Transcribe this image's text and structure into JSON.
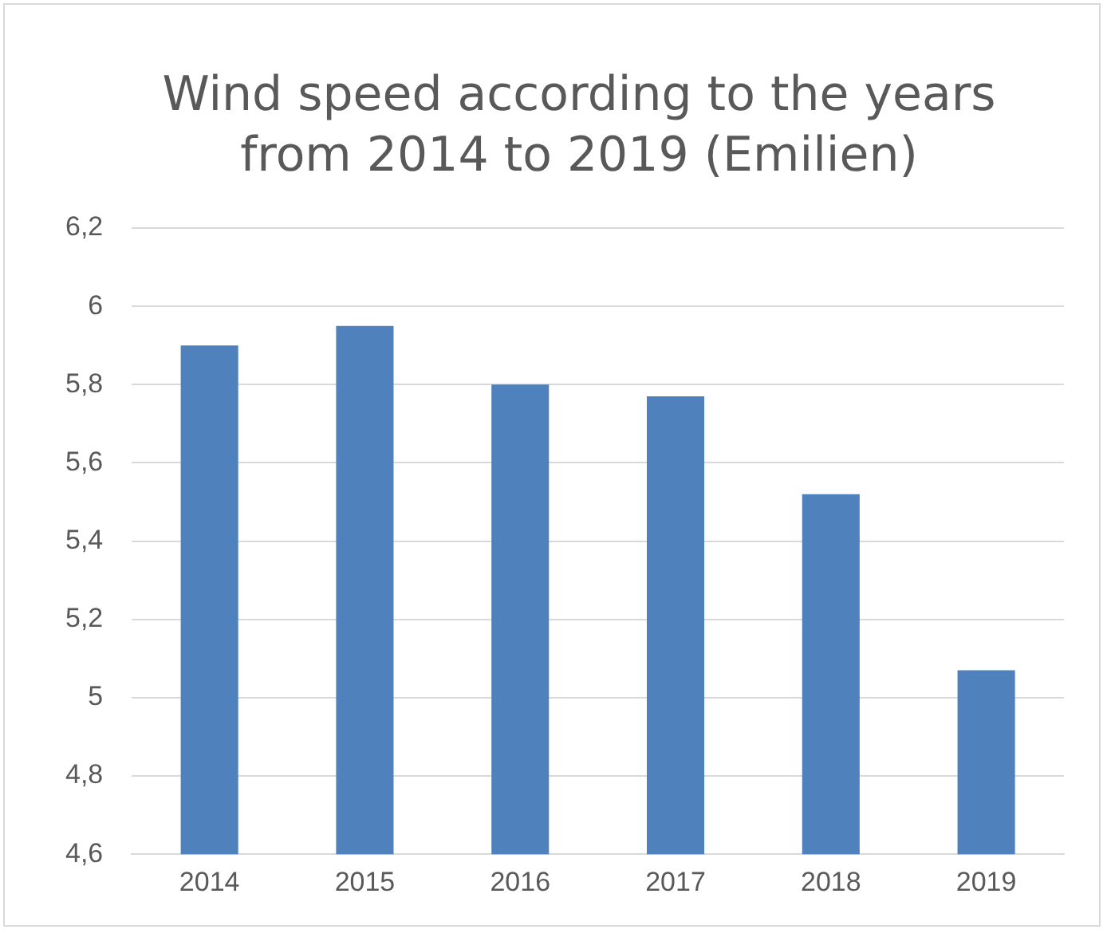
{
  "chart_data": {
    "type": "bar",
    "title": "Wind speed according to the years from 2014 to 2019 (Emilien)",
    "categories": [
      "2014",
      "2015",
      "2016",
      "2017",
      "2018",
      "2019"
    ],
    "values": [
      5.9,
      5.95,
      5.8,
      5.77,
      5.52,
      5.07
    ],
    "color": "#4f81bd",
    "ylim": [
      4.6,
      6.2
    ],
    "yticks": [
      {
        "value": 4.6,
        "label": "4,6"
      },
      {
        "value": 4.8,
        "label": "4,8"
      },
      5,
      {
        "value": 5.2,
        "label": "5,2"
      },
      {
        "value": 5.4,
        "label": "5,4"
      },
      {
        "value": 5.6,
        "label": "5,6"
      },
      {
        "value": 5.8,
        "label": "5,8"
      },
      6,
      {
        "value": 6.2,
        "label": "6,2"
      }
    ],
    "grid": "y",
    "legend": false
  }
}
